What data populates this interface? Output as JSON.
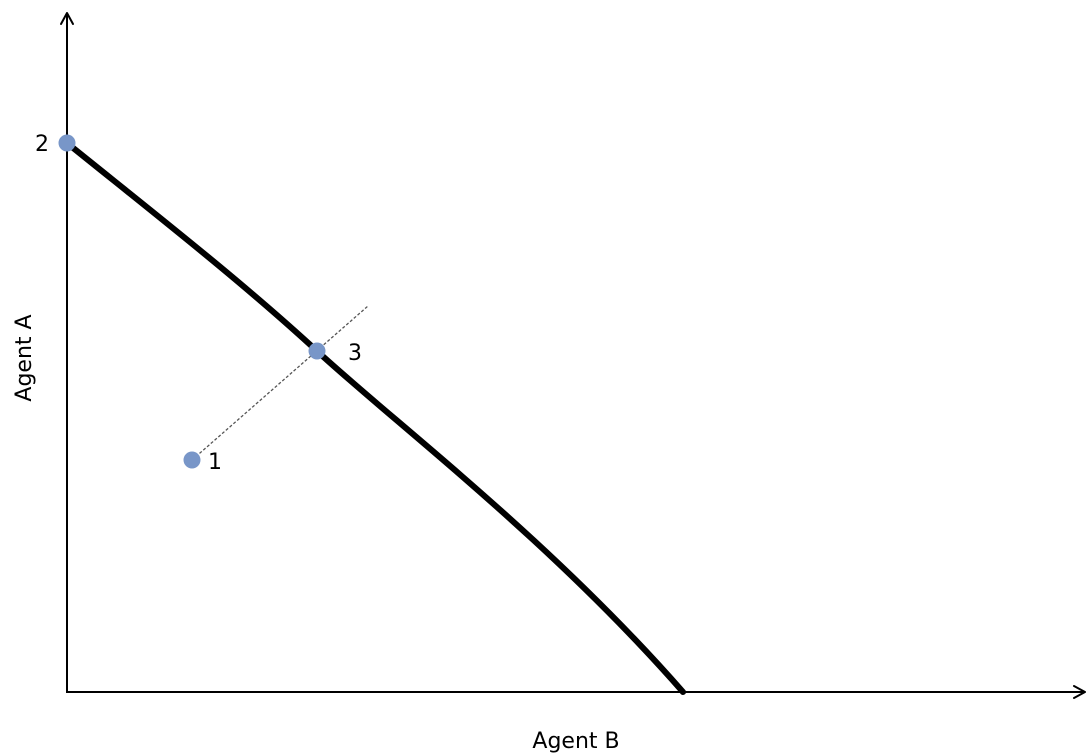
{
  "axes": {
    "x_label": "Agent B",
    "y_label": "Agent A"
  },
  "colors": {
    "point": "#7896C8",
    "line": "#000000",
    "guide": "#555555"
  },
  "points": [
    {
      "id": "1",
      "label": "1"
    },
    {
      "id": "2",
      "label": "2"
    },
    {
      "id": "3",
      "label": "3"
    }
  ]
}
